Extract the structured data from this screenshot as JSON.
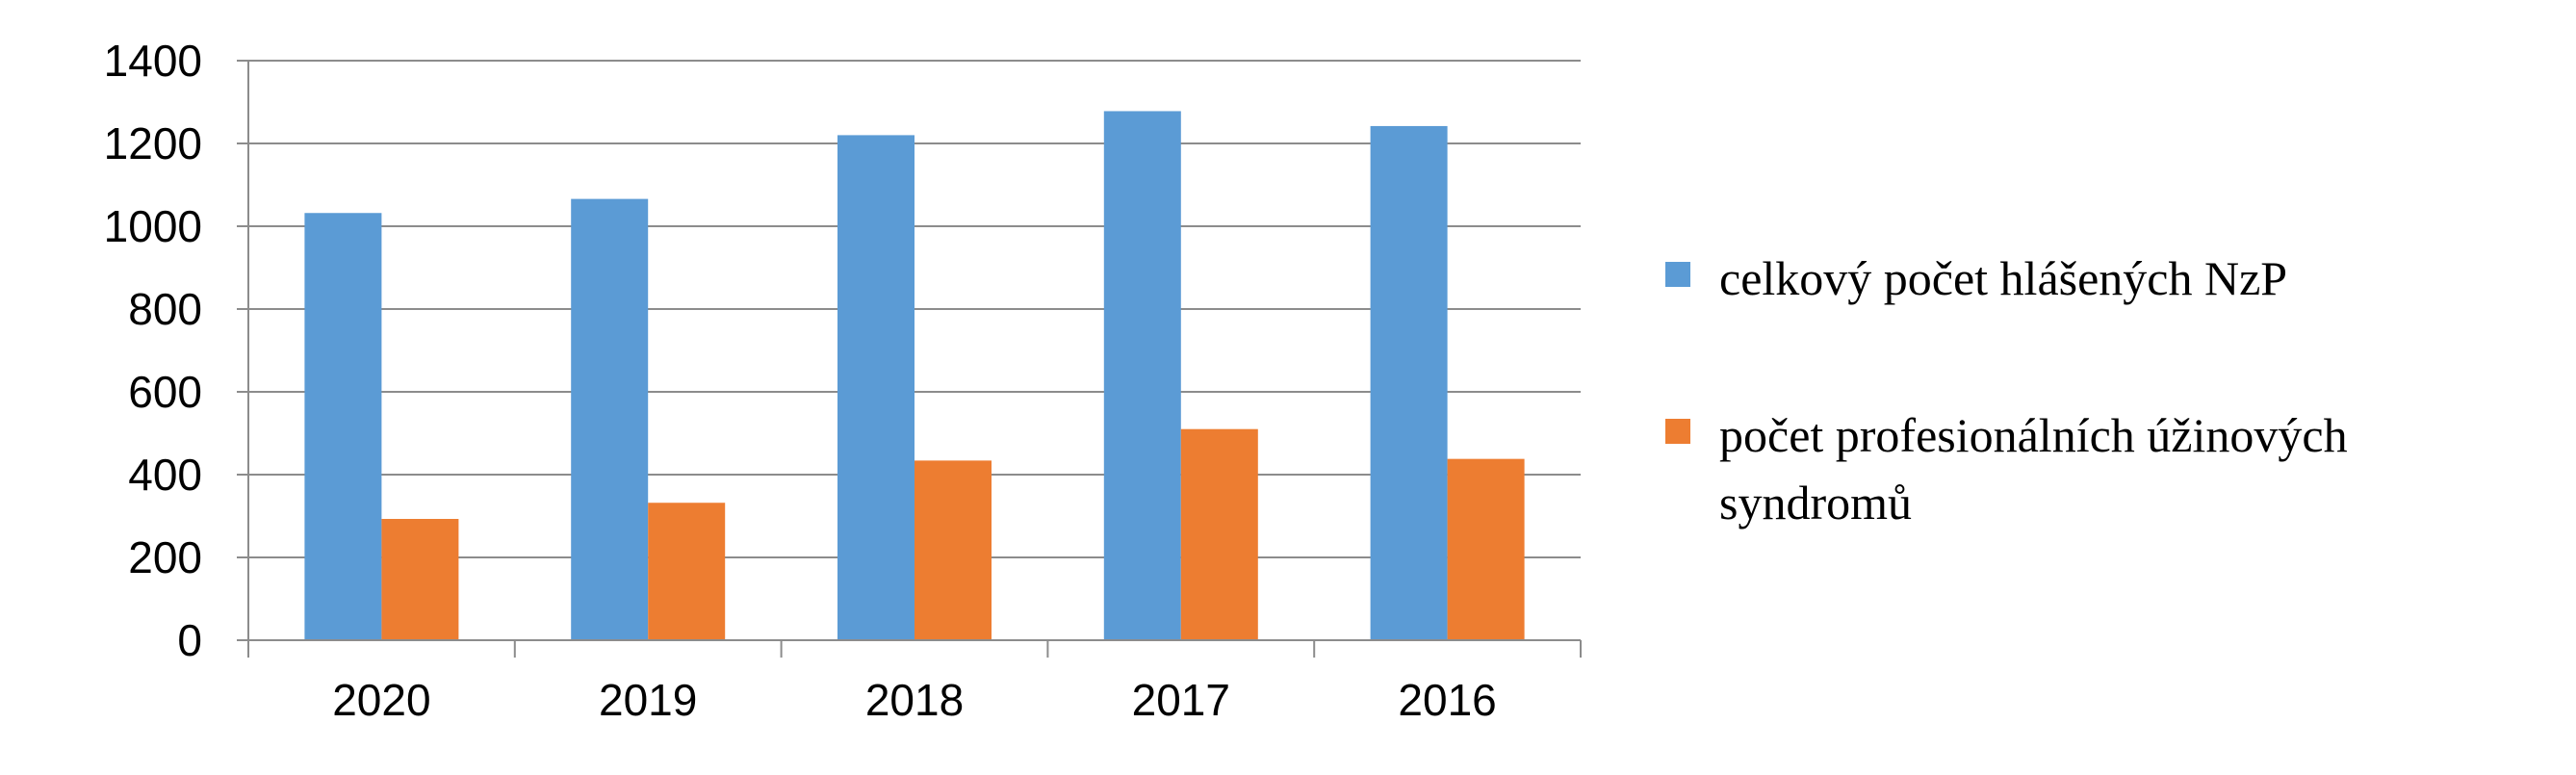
{
  "chart_data": {
    "type": "bar",
    "title": "",
    "xlabel": "",
    "ylabel": "",
    "categories": [
      "2020",
      "2019",
      "2018",
      "2017",
      "2016"
    ],
    "series": [
      {
        "name": "celkový počet hlášených NzP",
        "name_lines": [
          "celkový počet hlášených NzP"
        ],
        "color": "#5b9bd5",
        "values": [
          1032,
          1066,
          1220,
          1278,
          1242
        ]
      },
      {
        "name": "počet profesionálních úžinových syndromů",
        "name_lines": [
          "počet profesionálních úžinových",
          "syndromů"
        ],
        "color": "#ed7d31",
        "values": [
          293,
          332,
          434,
          510,
          438
        ]
      }
    ],
    "ylim": [
      0,
      1400
    ],
    "yticks": [
      "0",
      "200",
      "400",
      "600",
      "800",
      "1000",
      "1200",
      "1400"
    ],
    "grid": true,
    "legend_position": "right"
  }
}
